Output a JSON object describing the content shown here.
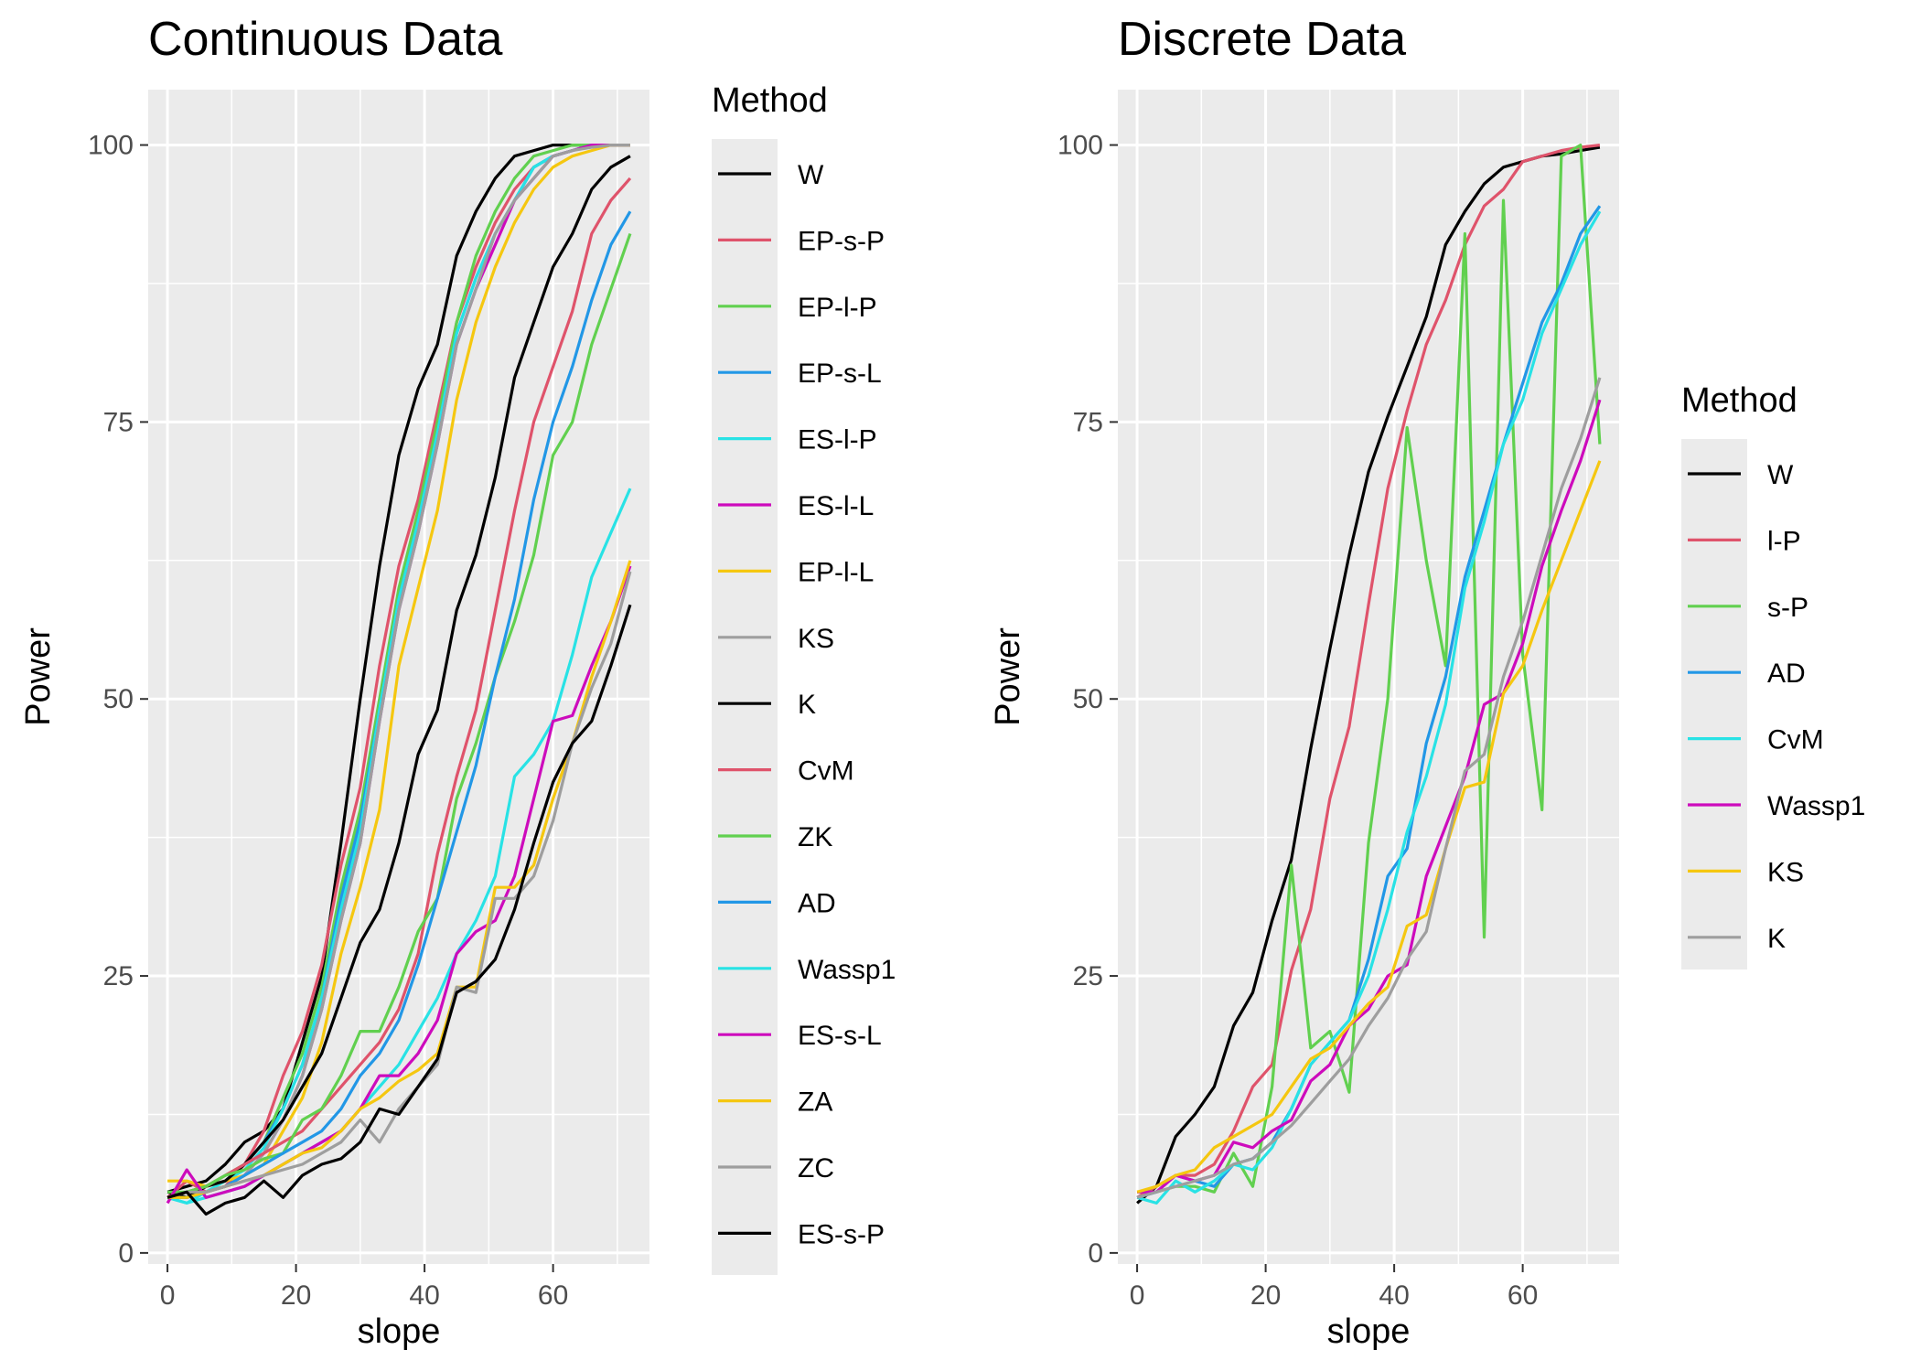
{
  "chart_data": [
    {
      "type": "line",
      "title": "Continuous Data",
      "xlabel": "slope",
      "ylabel": "Power",
      "xlim": [
        -3,
        75
      ],
      "ylim": [
        -1,
        105
      ],
      "xticks": [
        0,
        20,
        40,
        60
      ],
      "yticks": [
        0,
        25,
        50,
        75,
        100
      ],
      "grid": true,
      "legend_title": "Method",
      "legend_position": "right",
      "x": [
        0,
        3,
        6,
        9,
        12,
        15,
        18,
        21,
        24,
        27,
        30,
        33,
        36,
        39,
        42,
        45,
        48,
        51,
        54,
        57,
        60,
        63,
        66,
        69,
        72
      ],
      "series": [
        {
          "name": "W",
          "color": "#000000",
          "values": [
            5.5,
            6,
            6.5,
            8,
            10,
            11,
            13,
            19,
            25,
            37,
            50,
            62,
            72,
            78,
            82,
            90,
            94,
            97,
            99,
            99.5,
            100,
            100,
            100,
            100,
            100
          ]
        },
        {
          "name": "EP-s-P",
          "color": "#DF536B",
          "values": [
            5,
            6.5,
            5.5,
            6,
            8,
            11,
            16,
            20,
            26,
            35,
            42,
            53,
            62,
            68,
            76,
            84,
            89,
            93,
            96,
            98,
            99,
            99.5,
            100,
            100,
            100
          ]
        },
        {
          "name": "EP-l-P",
          "color": "#61D04F",
          "values": [
            5,
            5.5,
            6,
            7,
            8,
            10,
            14,
            18,
            24,
            33,
            40,
            50,
            60,
            67,
            75,
            84,
            90,
            94,
            97,
            99,
            99.5,
            100,
            100,
            100,
            100
          ]
        },
        {
          "name": "EP-s-L",
          "color": "#2297E6",
          "values": [
            5,
            5,
            6,
            6.5,
            8,
            10,
            13,
            17,
            23,
            32,
            39,
            49,
            59,
            66,
            74,
            83,
            88,
            92,
            95,
            98,
            99,
            99.5,
            100,
            100,
            100
          ]
        },
        {
          "name": "ES-l-P",
          "color": "#28E2E5",
          "values": [
            5,
            4.5,
            5.5,
            6.5,
            7.5,
            9.5,
            13,
            17,
            23,
            31,
            38,
            49,
            59,
            66,
            74,
            83,
            88,
            92,
            95,
            98,
            99,
            99.5,
            100,
            100,
            100
          ]
        },
        {
          "name": "ES-l-L",
          "color": "#CD0BBC",
          "values": [
            5,
            5.5,
            5.5,
            6,
            7,
            9,
            12,
            16,
            22,
            30,
            37,
            48,
            58,
            65,
            73,
            82,
            87,
            91,
            95,
            97,
            99,
            99.5,
            100,
            100,
            100
          ]
        },
        {
          "name": "EP-l-L",
          "color": "#F5C710",
          "values": [
            6.5,
            6.5,
            6,
            6.5,
            7,
            8,
            11,
            14,
            19,
            27,
            33,
            40,
            53,
            60,
            67,
            77,
            84,
            89,
            93,
            96,
            98,
            99,
            99.5,
            100,
            100
          ]
        },
        {
          "name": "KS",
          "color": "#9E9E9E",
          "values": [
            5,
            5,
            5.5,
            6,
            7,
            9,
            12,
            16,
            22,
            30,
            37,
            48,
            58,
            65,
            73,
            82,
            87,
            92,
            95,
            97,
            99,
            99.5,
            99.8,
            100,
            100
          ]
        },
        {
          "name": "K",
          "color": "#000000",
          "values": [
            5.5,
            5,
            6,
            6.5,
            8,
            10,
            12,
            15,
            18,
            23,
            28,
            31,
            37,
            45,
            49,
            58,
            63,
            70,
            79,
            84,
            89,
            92,
            96,
            98,
            99
          ]
        },
        {
          "name": "CvM",
          "color": "#DF536B",
          "values": [
            5,
            5.5,
            6,
            7,
            8,
            9,
            10,
            11,
            13,
            15,
            17,
            19,
            22,
            27,
            36,
            43,
            49,
            58,
            67,
            75,
            80,
            85,
            92,
            95,
            97
          ]
        },
        {
          "name": "ZK",
          "color": "#61D04F",
          "values": [
            5.5,
            5.5,
            6,
            7,
            7.5,
            8.5,
            9,
            12,
            13,
            16,
            20,
            20,
            24,
            29,
            32,
            41,
            46,
            52,
            57,
            63,
            72,
            75,
            82,
            87,
            92
          ]
        },
        {
          "name": "AD",
          "color": "#2297E6",
          "values": [
            5,
            5,
            5.5,
            6,
            7,
            8,
            9,
            10,
            11,
            13,
            16,
            18,
            21,
            26,
            32,
            38,
            44,
            52,
            59,
            68,
            75,
            80,
            86,
            91,
            94
          ]
        },
        {
          "name": "Wassp1",
          "color": "#28E2E5",
          "values": [
            5,
            4.5,
            5,
            5.5,
            6,
            7,
            8,
            9,
            10,
            11,
            13,
            15,
            17,
            20,
            23,
            27,
            30,
            34,
            43,
            45,
            48,
            54,
            61,
            65,
            69
          ]
        },
        {
          "name": "ES-s-L",
          "color": "#CD0BBC",
          "values": [
            4.5,
            7.5,
            5,
            5.5,
            6,
            7,
            8,
            9,
            10,
            11,
            13,
            16,
            16,
            18,
            21,
            27,
            29,
            30,
            34,
            41,
            48,
            48.5,
            53,
            57,
            62
          ]
        },
        {
          "name": "ZA",
          "color": "#F5C710",
          "values": [
            5,
            5,
            5.5,
            6,
            6.5,
            7,
            8,
            9,
            9.5,
            11,
            13,
            14,
            15.5,
            16.5,
            18,
            24,
            24,
            33,
            33,
            35,
            41,
            46,
            52,
            57,
            62.5
          ]
        },
        {
          "name": "ZC",
          "color": "#9E9E9E",
          "values": [
            5,
            5.5,
            5.5,
            6,
            6.5,
            7,
            7.5,
            8,
            9,
            10,
            12,
            10,
            13,
            15,
            17,
            24,
            23.5,
            32,
            32,
            34,
            39,
            46,
            51,
            55,
            61.5
          ]
        },
        {
          "name": "ES-s-P",
          "color": "#000000",
          "values": [
            5,
            5.5,
            3.5,
            4.5,
            5,
            6.5,
            5,
            7,
            8,
            8.5,
            10,
            13,
            12.5,
            15,
            17.5,
            23.5,
            24.5,
            26.5,
            31,
            37,
            42.5,
            46,
            48,
            53,
            58.5
          ]
        }
      ]
    },
    {
      "type": "line",
      "title": "Discrete Data",
      "xlabel": "slope",
      "ylabel": "Power",
      "xlim": [
        -3,
        75
      ],
      "ylim": [
        -1,
        105
      ],
      "xticks": [
        0,
        20,
        40,
        60
      ],
      "yticks": [
        0,
        25,
        50,
        75,
        100
      ],
      "grid": true,
      "legend_title": "Method",
      "legend_position": "right",
      "x": [
        0,
        3,
        6,
        9,
        12,
        15,
        18,
        21,
        24,
        27,
        30,
        33,
        36,
        39,
        42,
        45,
        48,
        51,
        54,
        57,
        60,
        63,
        66,
        69,
        72
      ],
      "series": [
        {
          "name": "W",
          "color": "#000000",
          "values": [
            4.5,
            6,
            10.5,
            12.5,
            15,
            20.5,
            23.5,
            30,
            35.5,
            45.5,
            54.5,
            63,
            70.5,
            75.5,
            80,
            84.5,
            91,
            94,
            96.5,
            98,
            98.5,
            99,
            99.2,
            99.5,
            99.8
          ]
        },
        {
          "name": "l-P",
          "color": "#DF536B",
          "values": [
            5,
            6,
            7,
            7,
            8,
            11,
            15,
            17,
            25.5,
            31,
            41,
            47.5,
            58.5,
            69,
            76,
            82,
            86,
            91,
            94.5,
            96,
            98.5,
            99,
            99.5,
            99.8,
            100
          ]
        },
        {
          "name": "s-P",
          "color": "#61D04F",
          "values": [
            5.5,
            5.5,
            6,
            6,
            5.5,
            9,
            6,
            15,
            35,
            18.5,
            20,
            14.5,
            37,
            50,
            74.5,
            62.5,
            53,
            92,
            28.5,
            95,
            54,
            40,
            99,
            100,
            73
          ]
        },
        {
          "name": "AD",
          "color": "#2297E6",
          "values": [
            5,
            5.5,
            7,
            6.5,
            6,
            8,
            8.5,
            10,
            13,
            17,
            19,
            21,
            26.5,
            34,
            36.5,
            46,
            52,
            61,
            67,
            73,
            78.5,
            84,
            87.5,
            92,
            94.5
          ]
        },
        {
          "name": "CvM",
          "color": "#28E2E5",
          "values": [
            5,
            4.5,
            6.5,
            5.5,
            6.5,
            8,
            7.5,
            9.5,
            13,
            17,
            19,
            21,
            25,
            31,
            38,
            43,
            49.5,
            60,
            66,
            73,
            77,
            83,
            87,
            91,
            94
          ]
        },
        {
          "name": "Wassp1",
          "color": "#CD0BBC",
          "values": [
            5.5,
            5.5,
            7,
            6.5,
            7,
            10,
            9.5,
            11,
            12,
            15.5,
            17,
            20.5,
            22,
            25,
            26,
            34,
            38.5,
            43,
            49.5,
            50.5,
            55,
            62,
            67,
            71.5,
            77
          ]
        },
        {
          "name": "KS",
          "color": "#F5C710",
          "values": [
            5.5,
            6,
            7,
            7.5,
            9.5,
            10.5,
            11.5,
            12.5,
            15,
            17.5,
            18.5,
            20.5,
            22.5,
            24,
            29.5,
            30.5,
            36.5,
            42,
            42.5,
            50.5,
            53,
            58,
            62.5,
            67,
            71.5
          ]
        },
        {
          "name": "K",
          "color": "#9E9E9E",
          "values": [
            5,
            5.5,
            6,
            6.5,
            7,
            8,
            8.5,
            10,
            11.5,
            13.5,
            15.5,
            17.5,
            20.5,
            23,
            26.5,
            29,
            36.5,
            43.5,
            45,
            52,
            57,
            63,
            69,
            73.5,
            79
          ]
        }
      ]
    }
  ]
}
